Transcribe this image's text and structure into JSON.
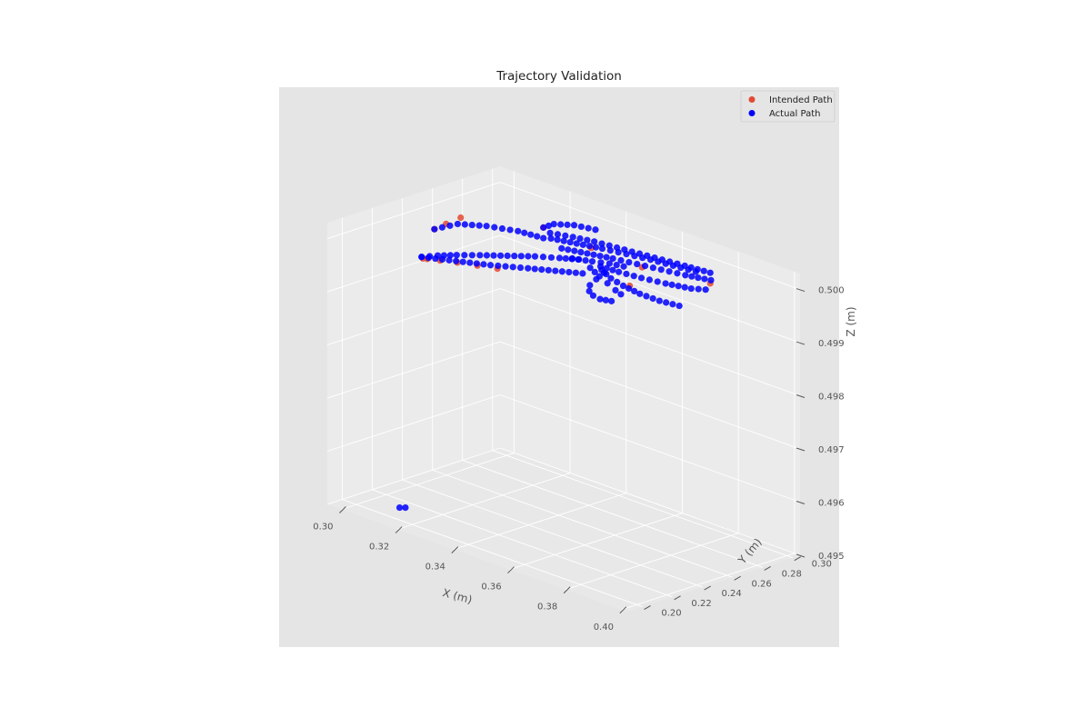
{
  "chart_data": {
    "type": "scatter3d",
    "title": "Trajectory Validation",
    "xlabel": "X (m)",
    "ylabel": "Y (m)",
    "zlabel": "Z (m)",
    "xlim": [
      0.295,
      0.402
    ],
    "ylim": [
      0.19,
      0.305
    ],
    "zlim": [
      0.495,
      0.5003
    ],
    "x_ticks": [
      "0.30",
      "0.32",
      "0.34",
      "0.36",
      "0.38",
      "0.40"
    ],
    "y_ticks": [
      "0.20",
      "0.22",
      "0.24",
      "0.26",
      "0.28",
      "0.30"
    ],
    "z_ticks": [
      "0.495",
      "0.496",
      "0.497",
      "0.498",
      "0.499",
      "0.500"
    ],
    "grid": true,
    "legend_position": "top-right",
    "colors": {
      "intended": "#e24a33",
      "actual": "#0000ff",
      "background": "#e5e5e5",
      "pane": "#ebebeb"
    },
    "series": [
      {
        "name": "Intended Path",
        "color": "#e24a33",
        "points": [
          [
            0.305,
            0.235,
            0.4994
          ],
          [
            0.309,
            0.239,
            0.4994
          ],
          [
            0.313,
            0.243,
            0.4994
          ],
          [
            0.318,
            0.247,
            0.4994
          ],
          [
            0.323,
            0.251,
            0.4994
          ],
          [
            0.306,
            0.236,
            0.4994
          ],
          [
            0.3,
            0.252,
            0.4997
          ],
          [
            0.302,
            0.256,
            0.4998
          ],
          [
            0.304,
            0.262,
            0.4999
          ],
          [
            0.326,
            0.276,
            0.5
          ],
          [
            0.342,
            0.278,
            0.4999
          ],
          [
            0.358,
            0.282,
            0.4998
          ],
          [
            0.378,
            0.29,
            0.4998
          ],
          [
            0.36,
            0.27,
            0.4996
          ]
        ]
      },
      {
        "name": "Actual Path",
        "color": "#0000ff",
        "segments": [
          [
            [
              0.304,
              0.236,
              0.4994
            ],
            [
              0.312,
              0.244,
              0.4994
            ],
            [
              0.32,
              0.252,
              0.4994
            ],
            [
              0.328,
              0.262,
              0.4994
            ],
            [
              0.334,
              0.269,
              0.4994
            ],
            [
              0.34,
              0.276,
              0.4994
            ]
          ],
          [
            [
              0.304,
              0.236,
              0.4994
            ],
            [
              0.306,
              0.243,
              0.4994
            ],
            [
              0.309,
              0.25,
              0.4994
            ],
            [
              0.313,
              0.258,
              0.4994
            ],
            [
              0.318,
              0.267,
              0.4994
            ],
            [
              0.323,
              0.276,
              0.4994
            ],
            [
              0.328,
              0.283,
              0.4994
            ],
            [
              0.332,
              0.288,
              0.4994
            ]
          ],
          [
            [
              0.3,
              0.252,
              0.4997
            ],
            [
              0.304,
              0.26,
              0.4998
            ],
            [
              0.31,
              0.268,
              0.4998
            ],
            [
              0.318,
              0.274,
              0.4998
            ],
            [
              0.326,
              0.276,
              0.4998
            ]
          ],
          [
            [
              0.326,
              0.276,
              0.5
            ],
            [
              0.326,
              0.283,
              0.5
            ],
            [
              0.33,
              0.289,
              0.5
            ],
            [
              0.336,
              0.292,
              0.5
            ]
          ],
          [
            [
              0.33,
              0.273,
              0.5
            ],
            [
              0.336,
              0.277,
              0.5
            ],
            [
              0.342,
              0.28,
              0.5
            ],
            [
              0.349,
              0.282,
              0.5
            ],
            [
              0.356,
              0.284,
              0.5
            ],
            [
              0.363,
              0.286,
              0.5
            ],
            [
              0.37,
              0.288,
              0.5
            ],
            [
              0.378,
              0.29,
              0.5
            ]
          ],
          [
            [
              0.333,
              0.268,
              0.5
            ],
            [
              0.34,
              0.272,
              0.5
            ],
            [
              0.347,
              0.276,
              0.5
            ],
            [
              0.354,
              0.279,
              0.5
            ],
            [
              0.361,
              0.282,
              0.5
            ],
            [
              0.368,
              0.284,
              0.5
            ],
            [
              0.375,
              0.286,
              0.5
            ]
          ],
          [
            [
              0.34,
              0.262,
              0.5
            ],
            [
              0.347,
              0.266,
              0.5
            ],
            [
              0.354,
              0.27,
              0.5
            ],
            [
              0.361,
              0.273,
              0.5
            ],
            [
              0.368,
              0.276,
              0.5
            ],
            [
              0.375,
              0.279,
              0.5
            ],
            [
              0.382,
              0.283,
              0.5
            ]
          ],
          [
            [
              0.347,
              0.256,
              0.5
            ],
            [
              0.352,
              0.26,
              0.5
            ],
            [
              0.356,
              0.264,
              0.5
            ],
            [
              0.36,
              0.266,
              0.5
            ]
          ],
          [
            [
              0.356,
              0.258,
              0.5
            ],
            [
              0.362,
              0.259,
              0.5
            ],
            [
              0.369,
              0.261,
              0.5
            ],
            [
              0.376,
              0.264,
              0.5
            ],
            [
              0.383,
              0.268,
              0.5
            ],
            [
              0.386,
              0.272,
              0.5
            ]
          ],
          [
            [
              0.355,
              0.253,
              0.5
            ],
            [
              0.361,
              0.248,
              0.5
            ],
            [
              0.366,
              0.244,
              0.5
            ],
            [
              0.371,
              0.24,
              0.5
            ],
            [
              0.374,
              0.238,
              0.5
            ]
          ],
          [
            [
              0.358,
              0.255,
              0.5
            ],
            [
              0.364,
              0.25,
              0.5
            ],
            [
              0.37,
              0.247,
              0.5
            ],
            [
              0.377,
              0.245,
              0.5
            ],
            [
              0.384,
              0.245,
              0.5
            ],
            [
              0.39,
              0.247,
              0.5
            ]
          ],
          [
            [
              0.36,
              0.253,
              0.5
            ],
            [
              0.362,
              0.244,
              0.5
            ],
            [
              0.364,
              0.236,
              0.5
            ],
            [
              0.367,
              0.23,
              0.5
            ],
            [
              0.37,
              0.227,
              0.5
            ],
            [
              0.373,
              0.226,
              0.5
            ],
            [
              0.376,
              0.228,
              0.5
            ]
          ],
          [
            [
              0.309,
              0.212,
              0.495
            ],
            [
              0.31,
              0.214,
              0.495
            ]
          ]
        ]
      }
    ]
  }
}
